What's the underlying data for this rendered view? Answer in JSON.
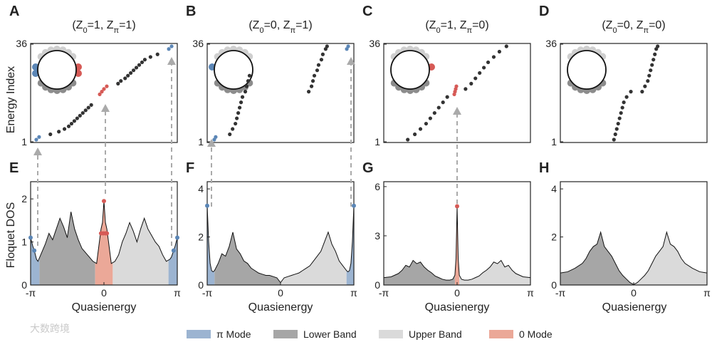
{
  "colors": {
    "pi_mode": "#5b86b6",
    "pi_band": "#9cb4d1",
    "lower_band": "#a6a6a6",
    "upper_band": "#dadada",
    "zero_mode": "#d65a56",
    "zero_band": "#eba898",
    "dot_dark": "#333333",
    "arrow": "#aaaaaa"
  },
  "labels": {
    "y_top": "Energy Index",
    "y_bottom": "Floquet DOS",
    "x_bottom": "Quasienergy",
    "idx_max": "36",
    "idx_min": "1"
  },
  "watermark": "大数跨境",
  "legend": [
    {
      "label": "π Mode",
      "key": "pi_band"
    },
    {
      "label": "Lower Band",
      "key": "lower_band"
    },
    {
      "label": "Upper Band",
      "key": "upper_band"
    },
    {
      "label": "0 Mode",
      "key": "zero_band"
    }
  ],
  "chart_data": [
    {
      "panel": "A",
      "type": "scatter",
      "title": "(Z0=1, Zπ=1)",
      "title_parts": {
        "z0": "1",
        "zpi": "1"
      },
      "ylabel": "Energy Index",
      "ylim": [
        1,
        36
      ],
      "ring_highlight": "both",
      "series": [
        {
          "name": "π Mode",
          "points": [
            [
              0.02,
              1
            ],
            [
              0.04,
              2
            ],
            [
              0.96,
              35
            ],
            [
              0.98,
              36
            ]
          ]
        },
        {
          "name": "0 Mode",
          "points": [
            [
              0.47,
              18
            ],
            [
              0.485,
              19
            ],
            [
              0.5,
              20
            ],
            [
              0.52,
              21
            ]
          ]
        },
        {
          "name": "Lower Band",
          "points": [
            [
              0.12,
              3
            ],
            [
              0.18,
              4
            ],
            [
              0.22,
              5
            ],
            [
              0.25,
              6
            ],
            [
              0.27,
              7
            ],
            [
              0.29,
              8
            ],
            [
              0.31,
              9
            ],
            [
              0.33,
              10
            ],
            [
              0.35,
              11
            ],
            [
              0.37,
              12
            ],
            [
              0.39,
              13
            ],
            [
              0.41,
              14
            ]
          ]
        },
        {
          "name": "Upper Band",
          "points": [
            [
              0.6,
              22
            ],
            [
              0.62,
              23
            ],
            [
              0.65,
              24
            ],
            [
              0.67,
              25
            ],
            [
              0.69,
              26
            ],
            [
              0.71,
              27
            ],
            [
              0.73,
              28
            ],
            [
              0.75,
              29
            ],
            [
              0.77,
              30
            ],
            [
              0.79,
              31
            ],
            [
              0.83,
              32
            ],
            [
              0.88,
              33
            ]
          ]
        }
      ]
    },
    {
      "panel": "B",
      "type": "scatter",
      "title": "(Z0=0, Zπ=1)",
      "title_parts": {
        "z0": "0",
        "zpi": "1"
      },
      "ylabel": "",
      "ylim": [
        1,
        36
      ],
      "ring_highlight": "pi",
      "series": [
        {
          "name": "π Mode",
          "points": [
            [
              0.03,
              1
            ],
            [
              0.04,
              2
            ],
            [
              0.97,
              35
            ],
            [
              0.98,
              36
            ]
          ]
        },
        {
          "name": "0 Mode",
          "points": []
        },
        {
          "name": "Lower Band",
          "points": [
            [
              0.14,
              3
            ],
            [
              0.16,
              5
            ],
            [
              0.18,
              7
            ],
            [
              0.19,
              9
            ],
            [
              0.2,
              11
            ],
            [
              0.21,
              13
            ],
            [
              0.22,
              15
            ],
            [
              0.23,
              17
            ],
            [
              0.25,
              19
            ],
            [
              0.26,
              21
            ],
            [
              0.27,
              23
            ],
            [
              0.28,
              25
            ]
          ]
        },
        {
          "name": "Upper Band",
          "points": [
            [
              0.7,
              19
            ],
            [
              0.72,
              21
            ],
            [
              0.73,
              23
            ],
            [
              0.74,
              25
            ],
            [
              0.76,
              27
            ],
            [
              0.77,
              29
            ],
            [
              0.79,
              31
            ],
            [
              0.8,
              33
            ],
            [
              0.82,
              35
            ],
            [
              0.83,
              36
            ]
          ]
        }
      ]
    },
    {
      "panel": "C",
      "type": "scatter",
      "title": "(Z0=1, Zπ=0)",
      "title_parts": {
        "z0": "1",
        "zpi": "0"
      },
      "ylabel": "",
      "ylim": [
        1,
        36
      ],
      "ring_highlight": "zero",
      "series": [
        {
          "name": "π Mode",
          "points": []
        },
        {
          "name": "0 Mode",
          "points": [
            [
              0.48,
              18
            ],
            [
              0.485,
              19
            ],
            [
              0.49,
              20
            ],
            [
              0.495,
              21
            ]
          ]
        },
        {
          "name": "Lower Band",
          "points": [
            [
              0.15,
              1
            ],
            [
              0.2,
              3
            ],
            [
              0.24,
              5
            ],
            [
              0.28,
              7
            ],
            [
              0.31,
              9
            ],
            [
              0.34,
              11
            ],
            [
              0.37,
              13
            ],
            [
              0.4,
              15
            ],
            [
              0.43,
              17
            ]
          ]
        },
        {
          "name": "Upper Band",
          "points": [
            [
              0.56,
              20
            ],
            [
              0.6,
              22
            ],
            [
              0.63,
              24
            ],
            [
              0.66,
              26
            ],
            [
              0.69,
              28
            ],
            [
              0.72,
              30
            ],
            [
              0.76,
              32
            ],
            [
              0.8,
              34
            ],
            [
              0.85,
              36
            ]
          ]
        }
      ]
    },
    {
      "panel": "D",
      "type": "scatter",
      "title": "(Z0=0, Zπ=0)",
      "title_parts": {
        "z0": "0",
        "zpi": "0"
      },
      "ylabel": "",
      "ylim": [
        1,
        36
      ],
      "ring_highlight": "none",
      "series": [
        {
          "name": "π Mode",
          "points": []
        },
        {
          "name": "0 Mode",
          "points": []
        },
        {
          "name": "Lower Band",
          "points": [
            [
              0.36,
              1
            ],
            [
              0.37,
              3
            ],
            [
              0.38,
              5
            ],
            [
              0.39,
              7
            ],
            [
              0.4,
              9
            ],
            [
              0.41,
              11
            ],
            [
              0.42,
              13
            ],
            [
              0.43,
              15
            ],
            [
              0.45,
              17
            ],
            [
              0.48,
              19
            ]
          ]
        },
        {
          "name": "Upper Band",
          "points": [
            [
              0.56,
              19
            ],
            [
              0.58,
              21
            ],
            [
              0.6,
              23
            ],
            [
              0.61,
              25
            ],
            [
              0.62,
              27
            ],
            [
              0.63,
              29
            ],
            [
              0.64,
              31
            ],
            [
              0.65,
              33
            ],
            [
              0.66,
              35
            ],
            [
              0.67,
              36
            ]
          ]
        }
      ]
    },
    {
      "panel": "E",
      "type": "area",
      "ylabel": "Floquet DOS",
      "xlabel": "Quasienergy",
      "xlim": [
        -1,
        1
      ],
      "ylim": [
        0,
        2.4
      ],
      "x_ticks": [
        "-π",
        "0",
        "π"
      ],
      "y_ticks": [
        "0",
        "1",
        "2"
      ],
      "x": [
        -1,
        -0.97,
        -0.95,
        -0.92,
        -0.9,
        -0.85,
        -0.8,
        -0.75,
        -0.7,
        -0.65,
        -0.6,
        -0.55,
        -0.5,
        -0.45,
        -0.4,
        -0.35,
        -0.3,
        -0.25,
        -0.2,
        -0.15,
        -0.1,
        -0.07,
        -0.04,
        -0.02,
        0,
        0.02,
        0.04,
        0.07,
        0.1,
        0.15,
        0.2,
        0.25,
        0.3,
        0.35,
        0.4,
        0.45,
        0.5,
        0.55,
        0.6,
        0.65,
        0.7,
        0.75,
        0.8,
        0.85,
        0.9,
        0.92,
        0.95,
        0.97,
        1
      ],
      "dos": [
        1.1,
        0.9,
        0.8,
        0.6,
        0.55,
        0.75,
        0.95,
        1.2,
        1.05,
        1.3,
        1.55,
        1.35,
        1.1,
        1.7,
        1.3,
        1.05,
        0.85,
        0.75,
        0.65,
        0.55,
        0.5,
        0.9,
        1.3,
        1.45,
        1.95,
        1.45,
        1.3,
        0.9,
        0.5,
        0.55,
        0.7,
        1.0,
        1.2,
        1.45,
        1.25,
        1.0,
        1.3,
        1.55,
        1.3,
        1.15,
        1.0,
        0.9,
        0.7,
        0.55,
        0.6,
        0.65,
        0.8,
        0.9,
        1.1
      ],
      "regions": [
        [
          "pi",
          -1,
          -0.88
        ],
        [
          "lower",
          -0.88,
          -0.12
        ],
        [
          "zero",
          -0.12,
          0.12
        ],
        [
          "upper",
          0.12,
          0.88
        ],
        [
          "pi",
          0.88,
          1
        ]
      ],
      "markers": [
        {
          "x": -1,
          "y": 1.1,
          "kind": "pi"
        },
        {
          "x": -0.95,
          "y": 0.8,
          "kind": "pi"
        },
        {
          "x": 0.95,
          "y": 0.8,
          "kind": "pi"
        },
        {
          "x": 1,
          "y": 1.1,
          "kind": "pi"
        },
        {
          "x": 0,
          "y": 1.95,
          "kind": "zero"
        },
        {
          "x": -0.04,
          "y": 1.2,
          "kind": "zero"
        },
        {
          "x": -0.01,
          "y": 1.2,
          "kind": "zero"
        },
        {
          "x": 0.02,
          "y": 1.2,
          "kind": "zero"
        },
        {
          "x": 0.04,
          "y": 1.2,
          "kind": "zero"
        }
      ]
    },
    {
      "panel": "F",
      "type": "area",
      "ylabel": "",
      "xlabel": "Quasienergy",
      "xlim": [
        -1,
        1
      ],
      "ylim": [
        0,
        4.3
      ],
      "x_ticks": [
        "-π",
        "0",
        "π"
      ],
      "y_ticks": [
        "0",
        "2",
        "4"
      ],
      "x": [
        -1,
        -0.98,
        -0.96,
        -0.94,
        -0.92,
        -0.9,
        -0.85,
        -0.8,
        -0.75,
        -0.7,
        -0.65,
        -0.6,
        -0.55,
        -0.5,
        -0.45,
        -0.4,
        -0.35,
        -0.3,
        -0.25,
        -0.2,
        -0.15,
        -0.1,
        -0.05,
        0,
        0.05,
        0.1,
        0.15,
        0.2,
        0.25,
        0.3,
        0.35,
        0.4,
        0.45,
        0.5,
        0.55,
        0.6,
        0.65,
        0.7,
        0.75,
        0.8,
        0.85,
        0.9,
        0.92,
        0.94,
        0.96,
        0.98,
        1
      ],
      "dos": [
        3.3,
        1.8,
        0.9,
        0.6,
        0.55,
        0.6,
        0.9,
        1.3,
        1.2,
        1.6,
        2.2,
        1.5,
        1.3,
        1.0,
        0.9,
        0.7,
        0.6,
        0.5,
        0.45,
        0.4,
        0.4,
        0.35,
        0.3,
        0.1,
        0.3,
        0.35,
        0.4,
        0.45,
        0.5,
        0.6,
        0.7,
        0.8,
        1.0,
        1.2,
        1.4,
        1.8,
        2.2,
        1.7,
        1.4,
        1.0,
        0.8,
        0.6,
        0.55,
        0.6,
        0.9,
        1.8,
        3.3
      ],
      "regions": [
        [
          "pi",
          -1,
          -0.9
        ],
        [
          "lower",
          -0.9,
          0
        ],
        [
          "upper",
          0,
          0.9
        ],
        [
          "pi",
          0.9,
          1
        ]
      ],
      "markers": [
        {
          "x": -1,
          "y": 3.3,
          "kind": "pi"
        },
        {
          "x": 1,
          "y": 3.3,
          "kind": "pi"
        }
      ]
    },
    {
      "panel": "G",
      "type": "area",
      "ylabel": "",
      "xlabel": "Quasienergy",
      "xlim": [
        -1,
        1
      ],
      "ylim": [
        0,
        6.3
      ],
      "x_ticks": [
        "-π",
        "0",
        "π"
      ],
      "y_ticks": [
        "0",
        "3",
        "6"
      ],
      "x": [
        -1,
        -0.9,
        -0.8,
        -0.75,
        -0.7,
        -0.65,
        -0.6,
        -0.55,
        -0.5,
        -0.45,
        -0.4,
        -0.35,
        -0.3,
        -0.25,
        -0.2,
        -0.15,
        -0.1,
        -0.06,
        -0.03,
        -0.015,
        0,
        0.015,
        0.03,
        0.06,
        0.1,
        0.15,
        0.2,
        0.25,
        0.3,
        0.35,
        0.4,
        0.45,
        0.5,
        0.55,
        0.6,
        0.65,
        0.7,
        0.75,
        0.8,
        0.9,
        1
      ],
      "dos": [
        0.45,
        0.5,
        0.7,
        0.9,
        1.2,
        1.1,
        1.5,
        1.3,
        1.4,
        1.1,
        0.9,
        0.75,
        0.55,
        0.45,
        0.35,
        0.3,
        0.3,
        0.35,
        0.6,
        1.6,
        4.8,
        1.6,
        0.6,
        0.35,
        0.3,
        0.3,
        0.35,
        0.45,
        0.55,
        0.75,
        0.9,
        1.1,
        1.4,
        1.3,
        1.5,
        1.1,
        1.2,
        0.9,
        0.7,
        0.5,
        0.45
      ],
      "regions": [
        [
          "lower",
          -1,
          -0.03
        ],
        [
          "zero",
          -0.03,
          0.03
        ],
        [
          "upper",
          0.03,
          1
        ]
      ],
      "markers": [
        {
          "x": 0,
          "y": 4.8,
          "kind": "zero"
        }
      ]
    },
    {
      "panel": "H",
      "type": "area",
      "ylabel": "",
      "xlabel": "Quasienergy",
      "xlim": [
        -1,
        1
      ],
      "ylim": [
        0,
        4.3
      ],
      "x_ticks": [
        "-π",
        "0",
        "π"
      ],
      "y_ticks": [
        "0",
        "2",
        "4"
      ],
      "x": [
        -1,
        -0.9,
        -0.8,
        -0.7,
        -0.65,
        -0.6,
        -0.55,
        -0.5,
        -0.45,
        -0.4,
        -0.35,
        -0.3,
        -0.25,
        -0.2,
        -0.15,
        -0.1,
        -0.05,
        0,
        0.05,
        0.1,
        0.15,
        0.2,
        0.25,
        0.3,
        0.35,
        0.4,
        0.45,
        0.5,
        0.55,
        0.6,
        0.65,
        0.7,
        0.8,
        0.9,
        1
      ],
      "dos": [
        0.5,
        0.55,
        0.7,
        0.9,
        1.1,
        1.4,
        1.6,
        1.7,
        2.2,
        1.6,
        1.4,
        1.2,
        0.9,
        0.6,
        0.4,
        0.25,
        0.1,
        0.02,
        0.1,
        0.25,
        0.4,
        0.6,
        0.9,
        1.2,
        1.4,
        1.6,
        2.2,
        1.7,
        1.6,
        1.4,
        1.1,
        0.9,
        0.7,
        0.55,
        0.5
      ],
      "regions": [
        [
          "lower",
          -1,
          0
        ],
        [
          "upper",
          0,
          1
        ]
      ],
      "markers": []
    }
  ]
}
